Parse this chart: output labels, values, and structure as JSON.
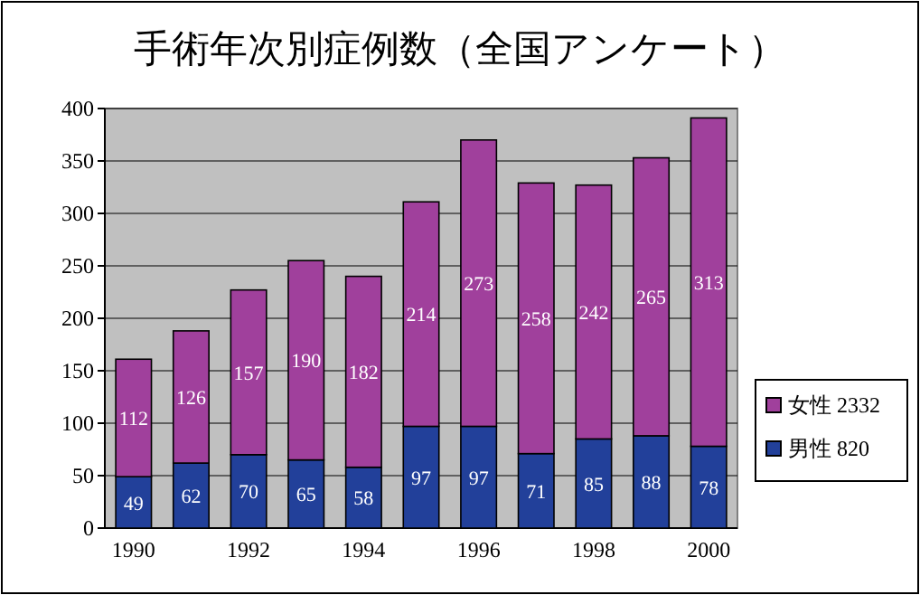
{
  "chart_data": {
    "type": "bar",
    "title": "手術年次別症例数（全国アンケート）",
    "stacked": true,
    "grid": "y",
    "legend": "right",
    "data_labels": true,
    "categories": [
      "1990",
      null,
      "1992",
      null,
      "1994",
      null,
      "1996",
      null,
      "1998",
      null,
      "2000"
    ],
    "ylim": [
      0,
      400
    ],
    "yticks": [
      0,
      50,
      100,
      150,
      200,
      250,
      300,
      350,
      400
    ],
    "series": [
      {
        "name": "男性 820",
        "color": "#22409a",
        "values": [
          49,
          62,
          70,
          65,
          58,
          97,
          97,
          71,
          85,
          88,
          78
        ]
      },
      {
        "name": "女性 2332",
        "color": "#a0409c",
        "values": [
          112,
          126,
          157,
          190,
          182,
          214,
          273,
          258,
          242,
          265,
          313
        ]
      }
    ]
  }
}
